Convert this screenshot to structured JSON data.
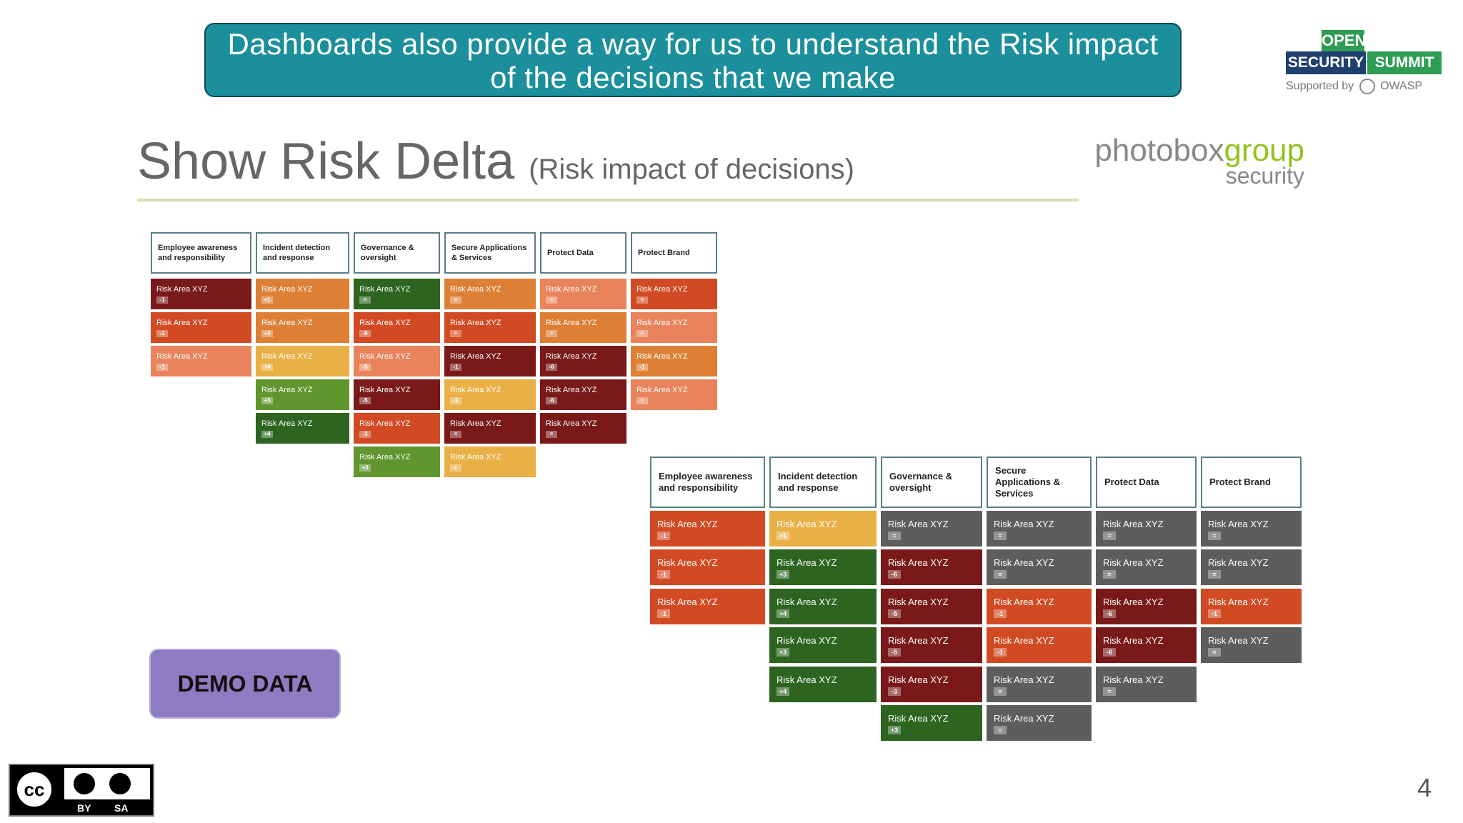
{
  "banner": {
    "line1": "Dashboards also provide a way for us to understand the Risk impact",
    "line2": "of the decisions that we make"
  },
  "event_logo": {
    "open": "OPEN",
    "security": "SECURITY",
    "summit": "SUMMIT",
    "supported_by": "Supported by",
    "owasp": "OWASP"
  },
  "slide": {
    "title": "Show Risk Delta",
    "subtitle": "(Risk impact of decisions)",
    "page_number": "4"
  },
  "company_logo": {
    "photobox": "photobox",
    "group": "group",
    "security": "security"
  },
  "demo_label": "DEMO DATA",
  "license": {
    "cc": "cc",
    "by": "BY",
    "sa": "SA"
  },
  "colors": {
    "dark_red": "#7a1919",
    "red": "#d24a23",
    "orange": "#dd8036",
    "light_orange": "#e8835b",
    "yellow": "#e9b046",
    "light_green": "#61952e",
    "dark_green": "#2c6420",
    "grey": "#5d5d5d",
    "teal_banner": "#1b8f9b",
    "purple": "#8e7cc3"
  },
  "dashboards": [
    {
      "columns": [
        {
          "header": "Employee awareness and responsibility",
          "cells": [
            {
              "label": "Risk Area XYZ",
              "delta": "-1",
              "color": "dark_red"
            },
            {
              "label": "Risk Area XYZ",
              "delta": "-1",
              "color": "red"
            },
            {
              "label": "Risk Area XYZ",
              "delta": "-1",
              "color": "light_orange"
            }
          ]
        },
        {
          "header": "Incident detection and response",
          "cells": [
            {
              "label": "Risk Area XYZ",
              "delta": "+1",
              "color": "orange"
            },
            {
              "label": "Risk Area XYZ",
              "delta": "+3",
              "color": "orange"
            },
            {
              "label": "Risk Area XYZ",
              "delta": "+4",
              "color": "yellow"
            },
            {
              "label": "Risk Area XYZ",
              "delta": "+3",
              "color": "light_green"
            },
            {
              "label": "Risk Area XYZ",
              "delta": "+4",
              "color": "dark_green"
            }
          ]
        },
        {
          "header": "Governance & oversight",
          "cells": [
            {
              "label": "Risk Area XYZ",
              "delta": "=",
              "color": "dark_green"
            },
            {
              "label": "Risk Area XYZ",
              "delta": "-6",
              "color": "red"
            },
            {
              "label": "Risk Area XYZ",
              "delta": "-5",
              "color": "light_orange"
            },
            {
              "label": "Risk Area XYZ",
              "delta": "-5",
              "color": "dark_red"
            },
            {
              "label": "Risk Area XYZ",
              "delta": "-3",
              "color": "red"
            },
            {
              "label": "Risk Area XYZ",
              "delta": "+3",
              "color": "light_green"
            }
          ]
        },
        {
          "header": "Secure Applications & Services",
          "cells": [
            {
              "label": "Risk Area XYZ",
              "delta": "=",
              "color": "orange"
            },
            {
              "label": "Risk Area XYZ",
              "delta": "=",
              "color": "red"
            },
            {
              "label": "Risk Area XYZ",
              "delta": "-1",
              "color": "dark_red"
            },
            {
              "label": "Risk Area XYZ",
              "delta": "-1",
              "color": "yellow"
            },
            {
              "label": "Risk Area XYZ",
              "delta": "=",
              "color": "dark_red"
            },
            {
              "label": "Risk Area XYZ",
              "delta": "=",
              "color": "yellow"
            }
          ]
        },
        {
          "header": "Protect Data",
          "cells": [
            {
              "label": "Risk Area XYZ",
              "delta": "=",
              "color": "light_orange"
            },
            {
              "label": "Risk Area XYZ",
              "delta": "=",
              "color": "orange"
            },
            {
              "label": "Risk Area XYZ",
              "delta": "-6",
              "color": "dark_red"
            },
            {
              "label": "Risk Area XYZ",
              "delta": "-6",
              "color": "dark_red"
            },
            {
              "label": "Risk Area XYZ",
              "delta": "=",
              "color": "dark_red"
            }
          ]
        },
        {
          "header": "Protect Brand",
          "cells": [
            {
              "label": "Risk Area XYZ",
              "delta": "=",
              "color": "red"
            },
            {
              "label": "Risk Area XYZ",
              "delta": "=",
              "color": "light_orange"
            },
            {
              "label": "Risk Area XYZ",
              "delta": "-1",
              "color": "orange"
            },
            {
              "label": "Risk Area XYZ",
              "delta": "=",
              "color": "light_orange"
            }
          ]
        }
      ]
    },
    {
      "columns": [
        {
          "header": "Employee awareness and responsibility",
          "cells": [
            {
              "label": "Risk Area XYZ",
              "delta": "-1",
              "color": "red"
            },
            {
              "label": "Risk Area XYZ",
              "delta": "-1",
              "color": "red"
            },
            {
              "label": "Risk Area XYZ",
              "delta": "-1",
              "color": "red"
            }
          ]
        },
        {
          "header": "Incident detection and response",
          "cells": [
            {
              "label": "Risk Area XYZ",
              "delta": "+1",
              "color": "yellow"
            },
            {
              "label": "Risk Area XYZ",
              "delta": "+3",
              "color": "dark_green"
            },
            {
              "label": "Risk Area XYZ",
              "delta": "+4",
              "color": "dark_green"
            },
            {
              "label": "Risk Area XYZ",
              "delta": "+3",
              "color": "dark_green"
            },
            {
              "label": "Risk Area XYZ",
              "delta": "+4",
              "color": "dark_green"
            }
          ]
        },
        {
          "header": "Governance & oversight",
          "cells": [
            {
              "label": "Risk Area XYZ",
              "delta": "=",
              "color": "grey"
            },
            {
              "label": "Risk Area XYZ",
              "delta": "-6",
              "color": "dark_red"
            },
            {
              "label": "Risk Area XYZ",
              "delta": "-5",
              "color": "dark_red"
            },
            {
              "label": "Risk Area XYZ",
              "delta": "-5",
              "color": "dark_red"
            },
            {
              "label": "Risk Area XYZ",
              "delta": "-3",
              "color": "dark_red"
            },
            {
              "label": "Risk Area XYZ",
              "delta": "+3",
              "color": "dark_green"
            }
          ]
        },
        {
          "header": "Secure Applications & Services",
          "cells": [
            {
              "label": "Risk Area XYZ",
              "delta": "=",
              "color": "grey"
            },
            {
              "label": "Risk Area XYZ",
              "delta": "=",
              "color": "grey"
            },
            {
              "label": "Risk Area XYZ",
              "delta": "-1",
              "color": "red"
            },
            {
              "label": "Risk Area XYZ",
              "delta": "-1",
              "color": "red"
            },
            {
              "label": "Risk Area XYZ",
              "delta": "=",
              "color": "grey"
            },
            {
              "label": "Risk Area XYZ",
              "delta": "=",
              "color": "grey"
            }
          ]
        },
        {
          "header": "Protect Data",
          "cells": [
            {
              "label": "Risk Area XYZ",
              "delta": "=",
              "color": "grey"
            },
            {
              "label": "Risk Area XYZ",
              "delta": "=",
              "color": "grey"
            },
            {
              "label": "Risk Area XYZ",
              "delta": "-6",
              "color": "dark_red"
            },
            {
              "label": "Risk Area XYZ",
              "delta": "-6",
              "color": "dark_red"
            },
            {
              "label": "Risk Area XYZ",
              "delta": "=",
              "color": "grey"
            }
          ]
        },
        {
          "header": "Protect Brand",
          "cells": [
            {
              "label": "Risk Area XYZ",
              "delta": "=",
              "color": "grey"
            },
            {
              "label": "Risk Area XYZ",
              "delta": "=",
              "color": "grey"
            },
            {
              "label": "Risk Area XYZ",
              "delta": "-1",
              "color": "red"
            },
            {
              "label": "Risk Area XYZ",
              "delta": "=",
              "color": "grey"
            }
          ]
        }
      ]
    }
  ]
}
